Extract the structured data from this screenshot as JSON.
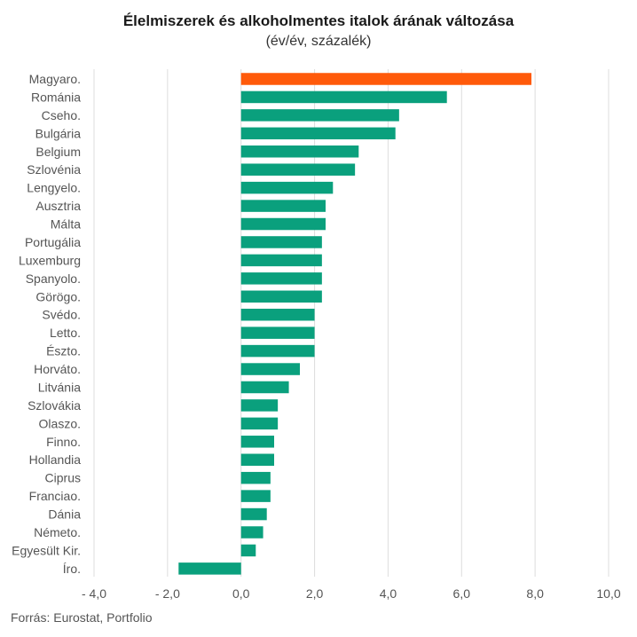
{
  "header": {
    "title": "Élelmiszerek és alkoholmentes italok árának változása",
    "subtitle": "(év/év, százalék)"
  },
  "footer": {
    "source": "Forrás: Eurostat, Portfolio"
  },
  "colors": {
    "bar": "#0aa07d",
    "highlight": "#ff5a0a",
    "grid": "#dddddd"
  },
  "chart_data": {
    "type": "bar",
    "orientation": "horizontal",
    "title": "Élelmiszerek és alkoholmentes italok árának változása",
    "subtitle": "(év/év, százalék)",
    "xlabel": "",
    "ylabel": "",
    "xlim": [
      -4,
      10
    ],
    "ticks": [
      -4,
      -2,
      0,
      2,
      4,
      6,
      8,
      10
    ],
    "tick_labels": [
      "- 4,0",
      "- 2,0",
      "0,0",
      "2,0",
      "4,0",
      "6,0",
      "8,0",
      "10,0"
    ],
    "grid": true,
    "legend": "none",
    "highlight_category": "Magyaro.",
    "categories": [
      "Magyaro.",
      "Románia",
      "Cseho.",
      "Bulgária",
      "Belgium",
      "Szlovénia",
      "Lengyelo.",
      "Ausztria",
      "Málta",
      "Portugália",
      "Luxemburg",
      "Spanyolo.",
      "Görögo.",
      "Svédo.",
      "Letto.",
      "Észto.",
      "Horváto.",
      "Litvánia",
      "Szlovákia",
      "Olaszo.",
      "Finno.",
      "Hollandia",
      "Ciprus",
      "Franciao.",
      "Dánia",
      "Németo.",
      "Egyesült Kir.",
      "Íro."
    ],
    "values": [
      7.9,
      5.6,
      4.3,
      4.2,
      3.2,
      3.1,
      2.5,
      2.3,
      2.3,
      2.2,
      2.2,
      2.2,
      2.2,
      2.0,
      2.0,
      2.0,
      1.6,
      1.3,
      1.0,
      1.0,
      0.9,
      0.9,
      0.8,
      0.8,
      0.7,
      0.6,
      0.4,
      -1.7
    ]
  }
}
